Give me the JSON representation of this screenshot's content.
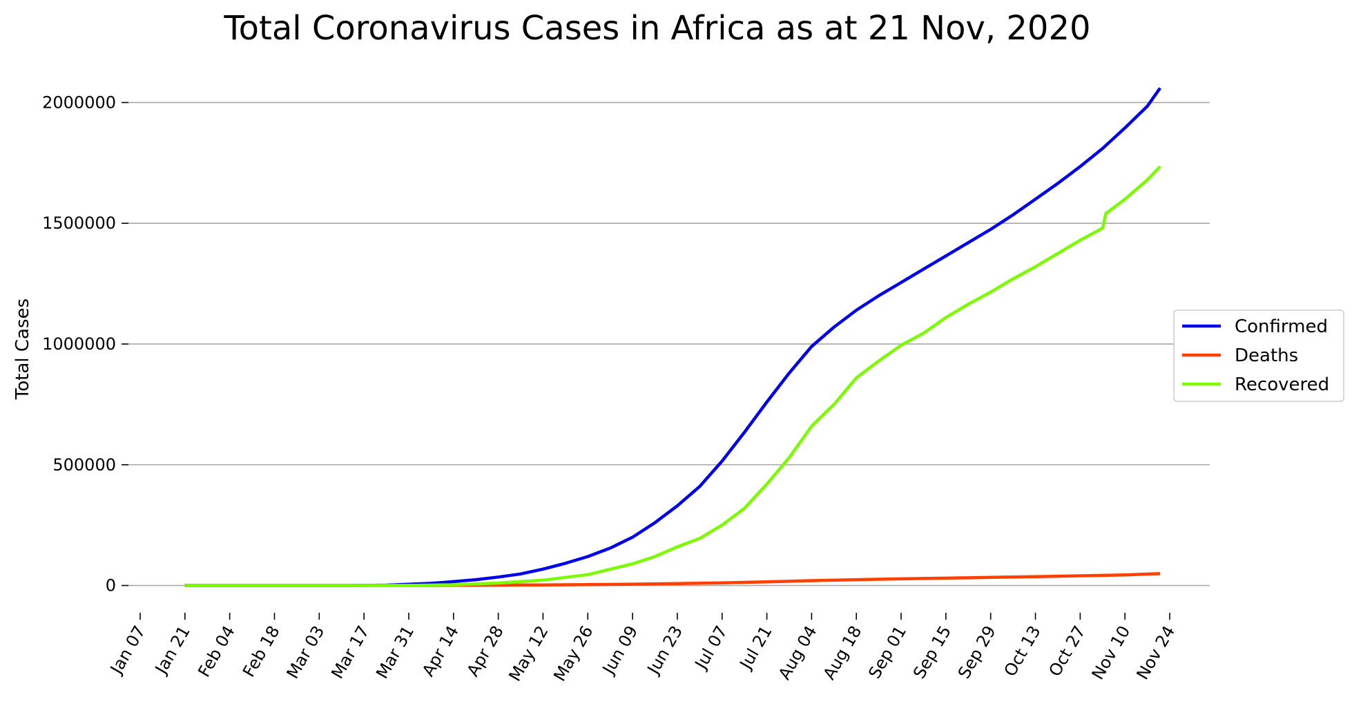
{
  "chart_data": {
    "type": "line",
    "title": "Total Coronavirus Cases in Africa as at 21 Nov, 2020",
    "xlabel": "",
    "ylabel": "Total Cases",
    "x_axis": {
      "type": "date",
      "range": [
        "2020-01-07",
        "2020-11-24"
      ],
      "ticks": [
        {
          "date": "2020-01-07",
          "label": "Jan 07"
        },
        {
          "date": "2020-01-21",
          "label": "Jan 21"
        },
        {
          "date": "2020-02-04",
          "label": "Feb 04"
        },
        {
          "date": "2020-02-18",
          "label": "Feb 18"
        },
        {
          "date": "2020-03-03",
          "label": "Mar 03"
        },
        {
          "date": "2020-03-17",
          "label": "Mar 17"
        },
        {
          "date": "2020-03-31",
          "label": "Mar 31"
        },
        {
          "date": "2020-04-14",
          "label": "Apr 14"
        },
        {
          "date": "2020-04-28",
          "label": "Apr 28"
        },
        {
          "date": "2020-05-12",
          "label": "May 12"
        },
        {
          "date": "2020-05-26",
          "label": "May 26"
        },
        {
          "date": "2020-06-09",
          "label": "Jun 09"
        },
        {
          "date": "2020-06-23",
          "label": "Jun 23"
        },
        {
          "date": "2020-07-07",
          "label": "Jul 07"
        },
        {
          "date": "2020-07-21",
          "label": "Jul 21"
        },
        {
          "date": "2020-08-04",
          "label": "Aug 04"
        },
        {
          "date": "2020-08-18",
          "label": "Aug 18"
        },
        {
          "date": "2020-09-01",
          "label": "Sep 01"
        },
        {
          "date": "2020-09-15",
          "label": "Sep 15"
        },
        {
          "date": "2020-09-29",
          "label": "Sep 29"
        },
        {
          "date": "2020-10-13",
          "label": "Oct 13"
        },
        {
          "date": "2020-10-27",
          "label": "Oct 27"
        },
        {
          "date": "2020-11-10",
          "label": "Nov 10"
        },
        {
          "date": "2020-11-24",
          "label": "Nov 24"
        }
      ]
    },
    "y_axis": {
      "range": [
        -70000,
        2130000
      ],
      "ticks": [
        0,
        500000,
        1000000,
        1500000,
        2000000
      ],
      "tick_labels": [
        "0",
        "500000",
        "1000000",
        "1500000",
        "2000000"
      ],
      "grid": true
    },
    "legend": {
      "placement": "right"
    },
    "series": [
      {
        "name": "Confirmed",
        "color": "#0000ee",
        "points": [
          [
            "2020-01-21",
            0
          ],
          [
            "2020-02-14",
            1
          ],
          [
            "2020-02-28",
            3
          ],
          [
            "2020-03-10",
            150
          ],
          [
            "2020-03-17",
            500
          ],
          [
            "2020-03-24",
            1500
          ],
          [
            "2020-03-31",
            5000
          ],
          [
            "2020-04-07",
            9000
          ],
          [
            "2020-04-14",
            16000
          ],
          [
            "2020-04-21",
            24000
          ],
          [
            "2020-04-28",
            35000
          ],
          [
            "2020-05-05",
            48000
          ],
          [
            "2020-05-12",
            68000
          ],
          [
            "2020-05-19",
            92000
          ],
          [
            "2020-05-26",
            120000
          ],
          [
            "2020-06-02",
            155000
          ],
          [
            "2020-06-09",
            200000
          ],
          [
            "2020-06-16",
            260000
          ],
          [
            "2020-06-23",
            330000
          ],
          [
            "2020-06-30",
            410000
          ],
          [
            "2020-07-07",
            515000
          ],
          [
            "2020-07-14",
            635000
          ],
          [
            "2020-07-21",
            760000
          ],
          [
            "2020-07-28",
            880000
          ],
          [
            "2020-08-04",
            990000
          ],
          [
            "2020-08-11",
            1070000
          ],
          [
            "2020-08-18",
            1140000
          ],
          [
            "2020-08-25",
            1200000
          ],
          [
            "2020-09-01",
            1255000
          ],
          [
            "2020-09-08",
            1310000
          ],
          [
            "2020-09-15",
            1365000
          ],
          [
            "2020-09-22",
            1420000
          ],
          [
            "2020-09-29",
            1475000
          ],
          [
            "2020-10-06",
            1535000
          ],
          [
            "2020-10-13",
            1600000
          ],
          [
            "2020-10-20",
            1665000
          ],
          [
            "2020-10-27",
            1735000
          ],
          [
            "2020-11-03",
            1810000
          ],
          [
            "2020-11-10",
            1895000
          ],
          [
            "2020-11-17",
            1985000
          ],
          [
            "2020-11-21",
            2060000
          ]
        ]
      },
      {
        "name": "Deaths",
        "color": "#ff4000",
        "points": [
          [
            "2020-01-21",
            0
          ],
          [
            "2020-03-17",
            15
          ],
          [
            "2020-04-01",
            200
          ],
          [
            "2020-04-14",
            800
          ],
          [
            "2020-04-28",
            1500
          ],
          [
            "2020-05-12",
            2500
          ],
          [
            "2020-05-26",
            3500
          ],
          [
            "2020-06-09",
            5500
          ],
          [
            "2020-06-23",
            8000
          ],
          [
            "2020-07-07",
            11000
          ],
          [
            "2020-07-21",
            15000
          ],
          [
            "2020-08-04",
            20000
          ],
          [
            "2020-08-18",
            24000
          ],
          [
            "2020-09-01",
            27500
          ],
          [
            "2020-09-15",
            30500
          ],
          [
            "2020-09-29",
            33500
          ],
          [
            "2020-10-13",
            36500
          ],
          [
            "2020-10-27",
            40000
          ],
          [
            "2020-11-10",
            44000
          ],
          [
            "2020-11-21",
            49000
          ]
        ]
      },
      {
        "name": "Recovered",
        "color": "#7cfc00",
        "points": [
          [
            "2020-01-21",
            0
          ],
          [
            "2020-03-17",
            50
          ],
          [
            "2020-03-31",
            500
          ],
          [
            "2020-04-14",
            3000
          ],
          [
            "2020-04-28",
            10000
          ],
          [
            "2020-05-12",
            22000
          ],
          [
            "2020-05-26",
            45000
          ],
          [
            "2020-06-09",
            90000
          ],
          [
            "2020-06-16",
            120000
          ],
          [
            "2020-06-23",
            160000
          ],
          [
            "2020-06-30",
            195000
          ],
          [
            "2020-07-07",
            250000
          ],
          [
            "2020-07-14",
            320000
          ],
          [
            "2020-07-21",
            420000
          ],
          [
            "2020-07-28",
            530000
          ],
          [
            "2020-08-04",
            660000
          ],
          [
            "2020-08-11",
            750000
          ],
          [
            "2020-08-18",
            860000
          ],
          [
            "2020-08-25",
            930000
          ],
          [
            "2020-09-01",
            995000
          ],
          [
            "2020-09-08",
            1045000
          ],
          [
            "2020-09-15",
            1110000
          ],
          [
            "2020-09-22",
            1165000
          ],
          [
            "2020-09-29",
            1215000
          ],
          [
            "2020-10-06",
            1270000
          ],
          [
            "2020-10-13",
            1320000
          ],
          [
            "2020-10-20",
            1375000
          ],
          [
            "2020-10-27",
            1430000
          ],
          [
            "2020-11-03",
            1480000
          ],
          [
            "2020-11-04",
            1540000
          ],
          [
            "2020-11-10",
            1600000
          ],
          [
            "2020-11-17",
            1680000
          ],
          [
            "2020-11-21",
            1735000
          ]
        ]
      }
    ]
  }
}
